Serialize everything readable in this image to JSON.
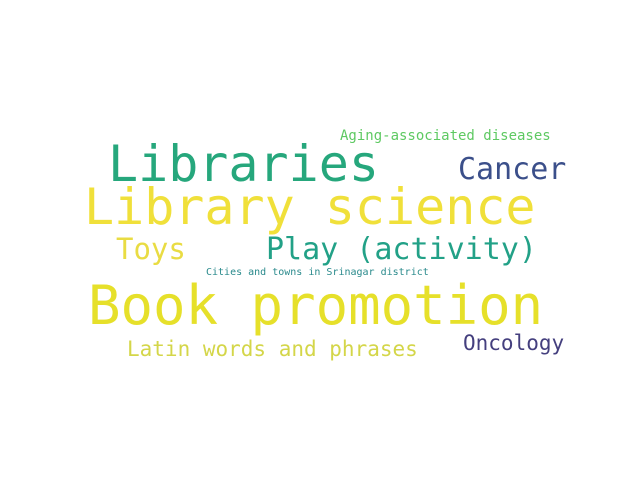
{
  "words": [
    {
      "key": "aging",
      "text": "Aging-associated diseases",
      "color": "#5ec962"
    },
    {
      "key": "libraries",
      "text": "Libraries",
      "color": "#26a77c"
    },
    {
      "key": "cancer",
      "text": "Cancer",
      "color": "#3b4f8a"
    },
    {
      "key": "libsci",
      "text": "Library science",
      "color": "#f0e03a"
    },
    {
      "key": "toys",
      "text": "Toys",
      "color": "#e9dc43"
    },
    {
      "key": "play",
      "text": "Play (activity)",
      "color": "#22a187"
    },
    {
      "key": "cities",
      "text": "Cities and towns in Srinagar district",
      "color": "#2a8a8c"
    },
    {
      "key": "book",
      "text": "Book promotion",
      "color": "#e6e02a"
    },
    {
      "key": "latin",
      "text": "Latin words and phrases",
      "color": "#d4d649"
    },
    {
      "key": "oncology",
      "text": "Oncology",
      "color": "#443f7e"
    }
  ]
}
